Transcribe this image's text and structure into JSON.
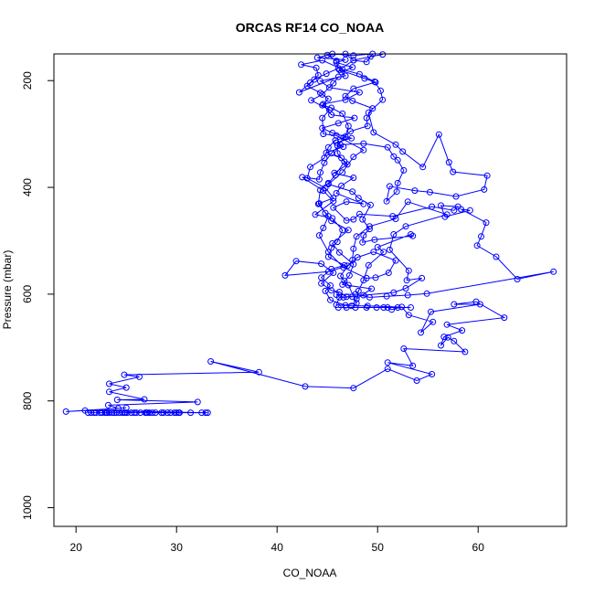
{
  "chart_data": {
    "type": "scatter",
    "title": "ORCAS RF14 CO_NOAA",
    "xlabel": "CO_NOAA",
    "ylabel": "Pressure (mbar)",
    "xlim": [
      17.8,
      68.8
    ],
    "ylim": [
      1035,
      150
    ],
    "y_inverted": true,
    "x_ticks": [
      20,
      30,
      40,
      50,
      60
    ],
    "y_ticks": [
      200,
      400,
      600,
      800,
      1000
    ],
    "marker": "open-circle",
    "connected": true,
    "grid": false,
    "series": [
      {
        "color": "#0000ff",
        "points": [
          [
            33.1,
            822
          ],
          [
            32.5,
            822
          ],
          [
            30.2,
            822
          ],
          [
            28.5,
            822
          ],
          [
            27.1,
            822
          ],
          [
            26.0,
            822
          ],
          [
            25.1,
            822
          ],
          [
            24.3,
            822
          ],
          [
            23.6,
            822
          ],
          [
            23.0,
            822
          ],
          [
            22.4,
            822
          ],
          [
            21.8,
            822
          ],
          [
            21.2,
            822
          ],
          [
            22.6,
            822
          ],
          [
            24.0,
            822
          ],
          [
            25.5,
            822
          ],
          [
            27.0,
            822
          ],
          [
            28.7,
            822
          ],
          [
            30.3,
            822
          ],
          [
            29.4,
            822
          ],
          [
            27.9,
            822
          ],
          [
            26.4,
            822
          ],
          [
            24.8,
            822
          ],
          [
            23.3,
            822
          ],
          [
            22.0,
            822
          ],
          [
            23.8,
            822
          ],
          [
            25.8,
            822
          ],
          [
            27.6,
            822
          ],
          [
            29.1,
            822
          ],
          [
            30.0,
            822
          ],
          [
            26.9,
            822
          ],
          [
            24.6,
            822
          ],
          [
            23.1,
            822
          ],
          [
            21.5,
            822
          ],
          [
            22.9,
            822
          ],
          [
            24.9,
            822
          ],
          [
            27.3,
            822
          ],
          [
            29.8,
            822
          ],
          [
            31.4,
            822
          ],
          [
            32.9,
            822
          ],
          [
            20.9,
            818
          ],
          [
            19.0,
            820
          ],
          [
            25.0,
            813
          ],
          [
            24.2,
            814
          ],
          [
            23.2,
            808
          ],
          [
            32.1,
            802
          ],
          [
            24.1,
            798
          ],
          [
            26.8,
            797
          ],
          [
            23.3,
            783
          ],
          [
            25.0,
            775
          ],
          [
            23.3,
            768
          ],
          [
            26.3,
            755
          ],
          [
            24.8,
            751
          ],
          [
            38.2,
            746
          ],
          [
            33.4,
            726
          ],
          [
            42.8,
            773
          ],
          [
            47.6,
            776
          ],
          [
            51.0,
            740
          ],
          [
            53.9,
            762
          ],
          [
            55.4,
            750
          ],
          [
            51.0,
            728
          ],
          [
            53.5,
            734
          ],
          [
            52.6,
            702
          ],
          [
            58.7,
            708
          ],
          [
            57.6,
            688
          ],
          [
            57.0,
            681
          ],
          [
            56.3,
            696
          ],
          [
            56.6,
            680
          ],
          [
            58.4,
            668
          ],
          [
            56.9,
            657
          ],
          [
            62.6,
            644
          ],
          [
            59.8,
            614
          ],
          [
            57.6,
            619
          ],
          [
            60.2,
            619
          ],
          [
            55.3,
            633
          ],
          [
            54.3,
            672
          ],
          [
            55.5,
            652
          ],
          [
            53.1,
            639
          ],
          [
            52.4,
            624
          ],
          [
            51.4,
            629
          ],
          [
            51.0,
            625
          ],
          [
            49.9,
            625
          ],
          [
            48.9,
            625
          ],
          [
            47.8,
            625
          ],
          [
            46.9,
            625
          ],
          [
            46.1,
            625
          ],
          [
            50.6,
            625
          ],
          [
            52.0,
            625
          ],
          [
            53.3,
            625
          ],
          [
            49.0,
            622
          ],
          [
            47.4,
            622
          ],
          [
            45.9,
            620
          ],
          [
            46.2,
            606
          ],
          [
            47.5,
            605
          ],
          [
            46.6,
            606
          ],
          [
            45.9,
            601
          ],
          [
            47.8,
            600
          ],
          [
            49.2,
            606
          ],
          [
            50.9,
            604
          ],
          [
            53.0,
            602
          ],
          [
            54.9,
            599
          ],
          [
            67.5,
            558
          ],
          [
            63.9,
            572
          ],
          [
            61.8,
            530
          ],
          [
            59.9,
            509
          ],
          [
            60.3,
            492
          ],
          [
            60.8,
            466
          ],
          [
            58.3,
            441
          ],
          [
            59.2,
            443
          ],
          [
            56.7,
            455
          ],
          [
            56.3,
            434
          ],
          [
            58.0,
            436
          ],
          [
            57.6,
            443
          ],
          [
            55.4,
            436
          ],
          [
            51.5,
            454
          ],
          [
            48.2,
            450
          ],
          [
            47.6,
            460
          ],
          [
            46.9,
            462
          ],
          [
            45.6,
            438
          ],
          [
            46.9,
            427
          ],
          [
            48.6,
            431
          ],
          [
            45.9,
            411
          ],
          [
            46.4,
            397
          ],
          [
            47.6,
            382
          ],
          [
            45.7,
            373
          ],
          [
            47.0,
            357
          ],
          [
            46.4,
            345
          ],
          [
            44.9,
            335
          ],
          [
            46.6,
            324
          ],
          [
            45.9,
            316
          ],
          [
            47.4,
            308
          ],
          [
            45.5,
            298
          ],
          [
            44.5,
            289
          ],
          [
            46.1,
            280
          ],
          [
            47.7,
            270
          ],
          [
            45.4,
            264
          ],
          [
            44.6,
            244
          ],
          [
            46.8,
            236
          ],
          [
            48.2,
            222
          ],
          [
            45.2,
            213
          ],
          [
            44.3,
            201
          ],
          [
            46.8,
            191
          ],
          [
            46.4,
            184
          ],
          [
            47.5,
            175
          ],
          [
            45.9,
            166
          ],
          [
            46.8,
            161
          ],
          [
            44.0,
            157
          ],
          [
            45.5,
            150
          ],
          [
            47.6,
            153
          ],
          [
            49.5,
            150
          ],
          [
            48.9,
            165
          ],
          [
            47.6,
            162
          ],
          [
            46.2,
            180
          ],
          [
            48.7,
            196
          ],
          [
            49.8,
            203
          ],
          [
            47.6,
            215
          ],
          [
            46.8,
            229
          ],
          [
            47.5,
            238
          ],
          [
            49.5,
            252
          ],
          [
            48.9,
            270
          ],
          [
            49.0,
            285
          ],
          [
            47.3,
            295
          ],
          [
            46.6,
            307
          ],
          [
            45.8,
            312
          ],
          [
            45.1,
            325
          ],
          [
            44.7,
            345
          ],
          [
            43.3,
            362
          ],
          [
            43.0,
            383
          ],
          [
            44.8,
            401
          ],
          [
            45.6,
            420
          ],
          [
            44.2,
            430
          ],
          [
            44.8,
            448
          ],
          [
            45.4,
            463
          ],
          [
            47.1,
            480
          ],
          [
            45.5,
            505
          ],
          [
            46.2,
            522
          ],
          [
            47.6,
            544
          ],
          [
            47.2,
            565
          ],
          [
            46.5,
            582
          ],
          [
            49.4,
            590
          ],
          [
            47.9,
            609
          ],
          [
            48.1,
            594
          ],
          [
            48.6,
            574
          ],
          [
            49.1,
            546
          ],
          [
            50.6,
            521
          ],
          [
            50.0,
            512
          ],
          [
            53.3,
            488
          ],
          [
            53.5,
            491
          ],
          [
            49.7,
            498
          ],
          [
            48.5,
            503
          ],
          [
            48.6,
            490
          ],
          [
            49.2,
            478
          ],
          [
            48.5,
            460
          ],
          [
            49.3,
            433
          ],
          [
            48.1,
            420
          ],
          [
            47.5,
            408
          ],
          [
            45.1,
            394
          ],
          [
            46.5,
            372
          ],
          [
            47.6,
            343
          ],
          [
            48.6,
            330
          ],
          [
            45.9,
            303
          ],
          [
            44.6,
            300
          ],
          [
            44.5,
            270
          ],
          [
            45.2,
            255
          ],
          [
            43.4,
            237
          ],
          [
            44.5,
            226
          ],
          [
            45.6,
            205
          ],
          [
            46.1,
            193
          ],
          [
            42.2,
            222
          ],
          [
            43.3,
            204
          ],
          [
            44.1,
            190
          ],
          [
            43.9,
            176
          ],
          [
            42.4,
            170
          ],
          [
            44.5,
            162
          ],
          [
            46.5,
            179
          ],
          [
            48.2,
            188
          ],
          [
            49.7,
            202
          ],
          [
            50.3,
            219
          ],
          [
            50.5,
            236
          ],
          [
            49.1,
            260
          ],
          [
            49.6,
            297
          ],
          [
            51.8,
            320
          ],
          [
            52.5,
            333
          ],
          [
            54.5,
            362
          ],
          [
            56.1,
            301
          ],
          [
            57.1,
            353
          ],
          [
            57.5,
            371
          ],
          [
            60.9,
            378
          ],
          [
            60.6,
            404
          ],
          [
            57.8,
            417
          ],
          [
            55.2,
            409
          ],
          [
            53.7,
            406
          ],
          [
            51.2,
            398
          ],
          [
            50.9,
            426
          ],
          [
            51.9,
            408
          ],
          [
            52.0,
            392
          ],
          [
            52.6,
            368
          ],
          [
            52.0,
            349
          ],
          [
            51.6,
            342
          ],
          [
            51.0,
            325
          ],
          [
            48.6,
            318
          ],
          [
            46.3,
            320
          ],
          [
            45.4,
            336
          ],
          [
            44.7,
            354
          ],
          [
            44.3,
            372
          ],
          [
            44.2,
            385
          ],
          [
            42.5,
            381
          ],
          [
            44.6,
            406
          ],
          [
            45.6,
            426
          ],
          [
            43.8,
            451
          ],
          [
            45.5,
            458
          ],
          [
            46.5,
            480
          ],
          [
            46.0,
            502
          ],
          [
            45.4,
            513
          ],
          [
            45.1,
            530
          ],
          [
            46.7,
            546
          ],
          [
            45.4,
            553
          ],
          [
            44.4,
            569
          ],
          [
            45.3,
            584
          ],
          [
            44.8,
            594
          ],
          [
            45.3,
            611
          ],
          [
            46.8,
            621
          ],
          [
            47.9,
            617
          ],
          [
            47.1,
            583
          ],
          [
            46.7,
            575
          ],
          [
            46.3,
            566
          ],
          [
            47.5,
            536
          ],
          [
            47.6,
            515
          ],
          [
            47.9,
            492
          ],
          [
            49.2,
            473
          ],
          [
            51.8,
            459
          ],
          [
            53.0,
            427
          ],
          [
            56.9,
            451
          ],
          [
            52.8,
            473
          ],
          [
            51.6,
            488
          ],
          [
            51.2,
            517
          ],
          [
            53.1,
            556
          ],
          [
            52.9,
            574
          ],
          [
            54.4,
            570
          ],
          [
            52.8,
            589
          ],
          [
            51.6,
            597
          ],
          [
            48.6,
            602
          ],
          [
            46.9,
            605
          ],
          [
            46.2,
            596
          ],
          [
            45.4,
            593
          ],
          [
            44.4,
            580
          ],
          [
            45.6,
            560
          ],
          [
            44.4,
            543
          ],
          [
            41.9,
            538
          ],
          [
            40.8,
            565
          ],
          [
            45.1,
            558
          ],
          [
            47.0,
            547
          ],
          [
            48.0,
            531
          ],
          [
            49.6,
            521
          ],
          [
            51.8,
            537
          ],
          [
            51.1,
            560
          ],
          [
            49.8,
            569
          ],
          [
            48.9,
            570
          ],
          [
            46.6,
            550
          ],
          [
            45.1,
            521
          ],
          [
            44.2,
            490
          ],
          [
            44.6,
            476
          ],
          [
            45.1,
            454
          ],
          [
            44.1,
            431
          ],
          [
            44.3,
            405
          ],
          [
            45.1,
            392
          ],
          [
            45.8,
            377
          ],
          [
            46.7,
            352
          ],
          [
            46.0,
            336
          ],
          [
            46.0,
            322
          ],
          [
            46.8,
            305
          ],
          [
            47.1,
            285
          ],
          [
            46.5,
            262
          ],
          [
            45.4,
            251
          ],
          [
            44.5,
            246
          ],
          [
            45.1,
            234
          ],
          [
            44.3,
            223
          ],
          [
            43.0,
            210
          ],
          [
            43.7,
            198
          ],
          [
            44.9,
            187
          ],
          [
            46.1,
            177
          ],
          [
            45.9,
            163
          ],
          [
            45.0,
            152
          ],
          [
            46.8,
            150
          ],
          [
            47.6,
            162
          ],
          [
            49.3,
            155
          ],
          [
            50.5,
            151
          ]
        ]
      }
    ]
  }
}
